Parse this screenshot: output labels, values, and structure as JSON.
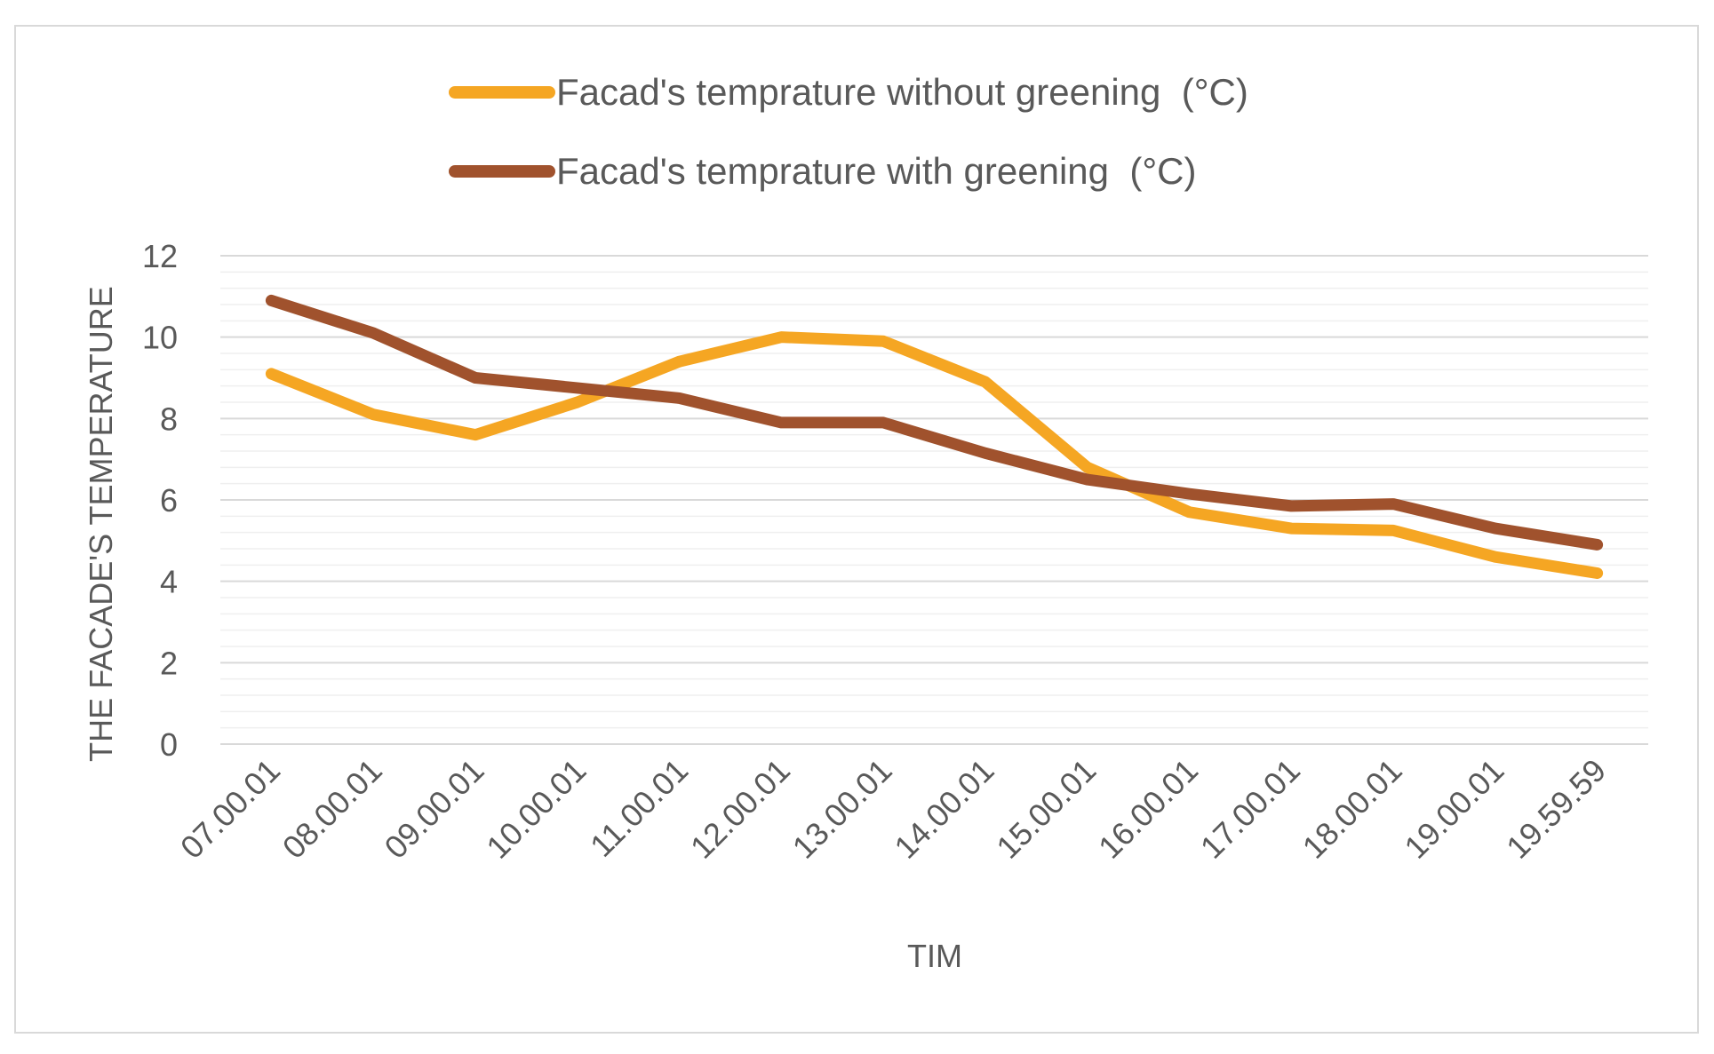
{
  "chart_data": {
    "type": "line",
    "title": "",
    "xlabel": "TIM",
    "ylabel": "THE FACADE'S TEMPERATURE",
    "ylim": [
      0,
      12
    ],
    "yticks": [
      0,
      2,
      4,
      6,
      8,
      10,
      12
    ],
    "grid": true,
    "legend_position": "top",
    "categories": [
      "07.00.01",
      "08.00.01",
      "09.00.01",
      "10.00.01",
      "11.00.01",
      "12.00.01",
      "13.00.01",
      "14.00.01",
      "15.00.01",
      "16.00.01",
      "17.00.01",
      "18.00.01",
      "19.00.01",
      "19.59.59"
    ],
    "series": [
      {
        "name": "Facad's temprature without greening  (°C)",
        "color": "#F5A623",
        "values": [
          9.1,
          8.1,
          7.6,
          8.4,
          9.4,
          10.0,
          9.9,
          8.9,
          6.8,
          5.7,
          5.3,
          5.25,
          4.6,
          4.2
        ]
      },
      {
        "name": "Facad's temprature with greening  (°C)",
        "color": "#A0522D",
        "values": [
          10.9,
          10.1,
          9.0,
          8.75,
          8.5,
          7.9,
          7.9,
          7.15,
          6.5,
          6.15,
          5.85,
          5.9,
          5.3,
          4.9
        ]
      }
    ]
  }
}
